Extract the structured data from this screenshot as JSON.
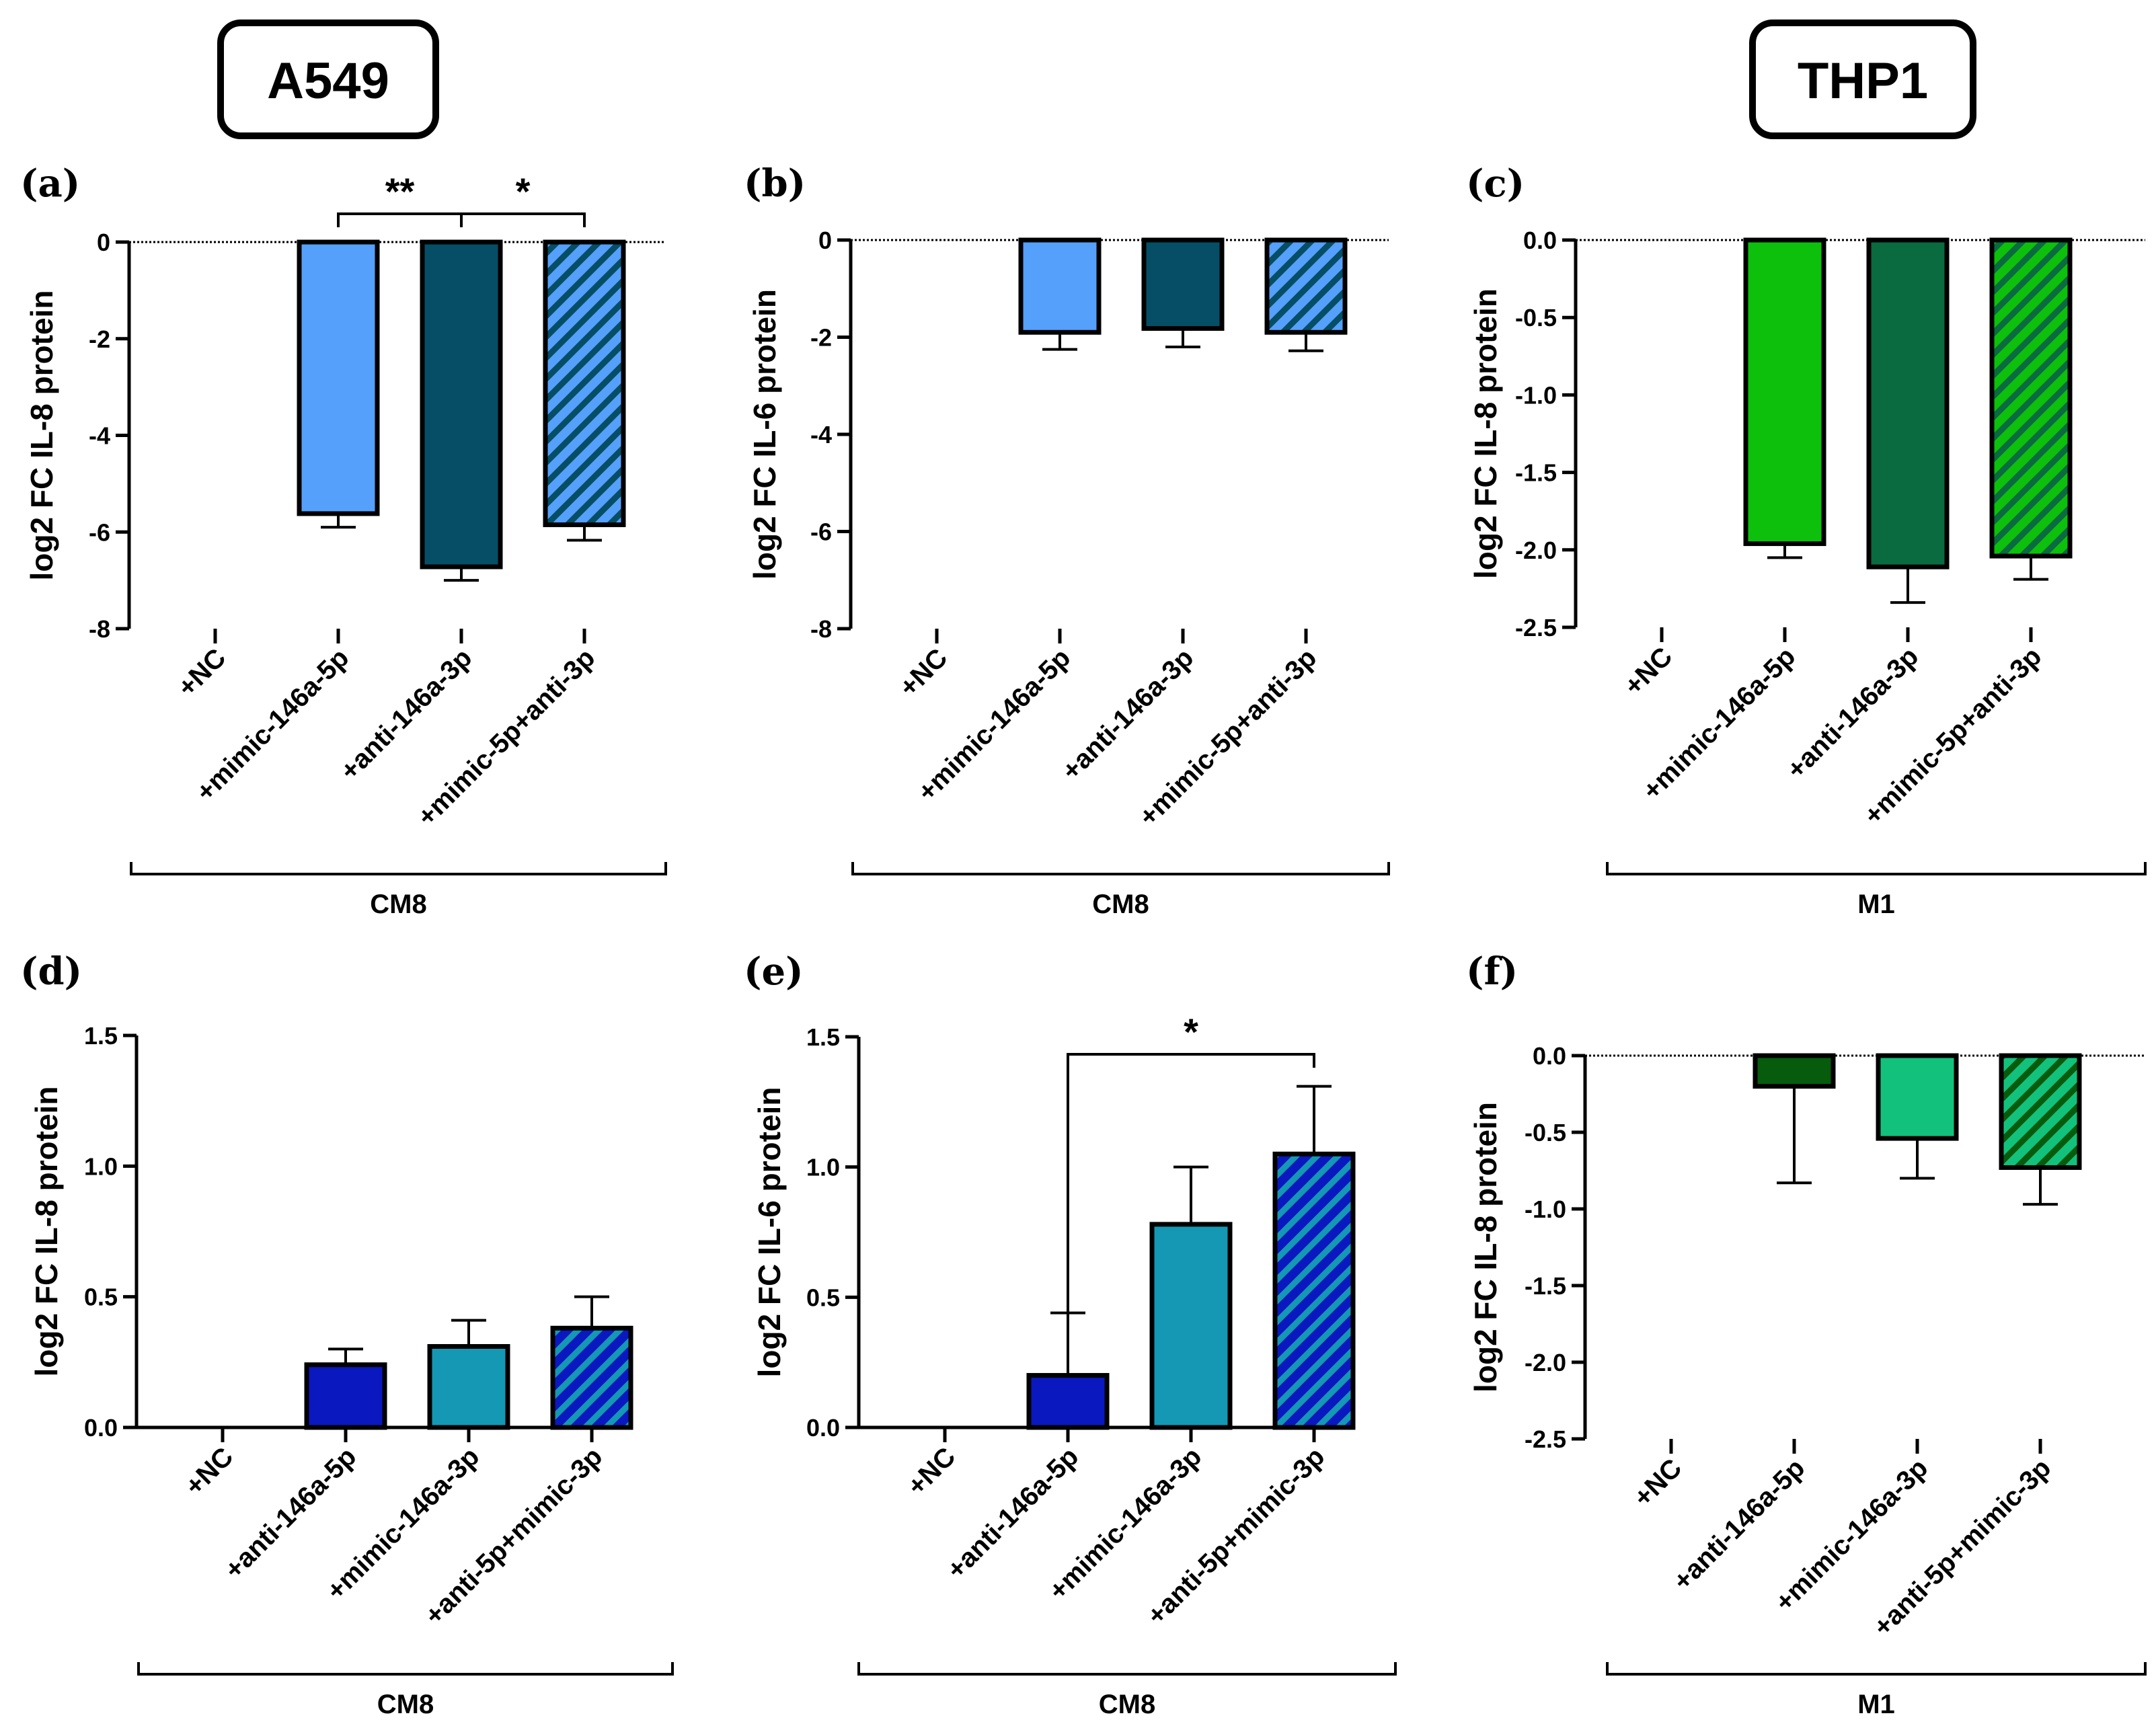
{
  "cell_lines": [
    {
      "label": "A549"
    },
    {
      "label": "THP1"
    }
  ],
  "colors": {
    "light_blue": "#55a0fa",
    "dark_teal": "#054e66",
    "royal_blue": "#0a18bf",
    "teal": "#1498b4",
    "bright_green": "#0cc00c",
    "forest_green": "#0a6a40",
    "dark_green": "#065c0c",
    "mint_green": "#12c27c"
  },
  "chart_data": [
    {
      "panel": "(a)",
      "type": "bar",
      "ylabel": "log2 FC IL-8 protein",
      "ylim": [
        -8,
        0
      ],
      "yticks": [
        "0",
        "-2",
        "-4",
        "-6",
        "-8"
      ],
      "yticks_values": [
        0,
        -2,
        -4,
        -6,
        -8
      ],
      "group_label": "CM8",
      "categories": [
        "+NC",
        "+mimic-146a-5p",
        "+anti-146a-3p",
        "+mimic-5p+anti-3p"
      ],
      "values": [
        0,
        -5.62,
        -6.72,
        -5.85
      ],
      "errors": [
        0,
        0.28,
        0.28,
        0.32
      ],
      "bar_colors": [
        "",
        "#55a0fa",
        "#054e66",
        "#55a0fa"
      ],
      "hatched": [
        false,
        false,
        false,
        true
      ],
      "hatch_color": "#054e66",
      "significance": [
        {
          "from": 1,
          "to": 2,
          "label": "**"
        },
        {
          "from": 2,
          "to": 3,
          "label": "*"
        }
      ]
    },
    {
      "panel": "(b)",
      "type": "bar",
      "ylabel": "log2 FC IL-6 protein",
      "ylim": [
        -8,
        0
      ],
      "yticks": [
        "0",
        "-2",
        "-4",
        "-6",
        "-8"
      ],
      "yticks_values": [
        0,
        -2,
        -4,
        -6,
        -8
      ],
      "group_label": "CM8",
      "categories": [
        "+NC",
        "+mimic-146a-5p",
        "+anti-146a-3p",
        "+mimic-5p+anti-3p"
      ],
      "values": [
        0,
        -1.9,
        -1.82,
        -1.9
      ],
      "errors": [
        0,
        0.35,
        0.38,
        0.38
      ],
      "bar_colors": [
        "",
        "#55a0fa",
        "#054e66",
        "#55a0fa"
      ],
      "hatched": [
        false,
        false,
        false,
        true
      ],
      "hatch_color": "#054e66",
      "significance": []
    },
    {
      "panel": "(c)",
      "type": "bar",
      "ylabel": "log2 FC IL-8 protein",
      "ylim": [
        -2.5,
        0
      ],
      "yticks": [
        "0.0",
        "-0.5",
        "-1.0",
        "-1.5",
        "-2.0",
        "-2.5"
      ],
      "yticks_values": [
        0,
        -0.5,
        -1.0,
        -1.5,
        -2.0,
        -2.5
      ],
      "group_label": "M1",
      "categories": [
        "+NC",
        "+mimic-146a-5p",
        "+anti-146a-3p",
        "+mimic-5p+anti-3p"
      ],
      "values": [
        0,
        -1.96,
        -2.11,
        -2.04
      ],
      "errors": [
        0,
        0.09,
        0.23,
        0.15
      ],
      "bar_colors": [
        "",
        "#0cc00c",
        "#0a6a40",
        "#0cc00c"
      ],
      "hatched": [
        false,
        false,
        false,
        true
      ],
      "hatch_color": "#0a6a40",
      "significance": []
    },
    {
      "panel": "(d)",
      "type": "bar",
      "ylabel": "log2 FC IL-8 protein",
      "ylim": [
        0,
        1.5
      ],
      "yticks": [
        "1.5",
        "1.0",
        "0.5",
        "0.0"
      ],
      "yticks_values": [
        1.5,
        1.0,
        0.5,
        0.0
      ],
      "group_label": "CM8",
      "categories": [
        "+NC",
        "+anti-146a-5p",
        "+mimic-146a-3p",
        "+anti-5p+mimic-3p"
      ],
      "values": [
        0,
        0.24,
        0.31,
        0.38
      ],
      "errors": [
        0,
        0.06,
        0.1,
        0.12
      ],
      "bar_colors": [
        "",
        "#0a18bf",
        "#1498b4",
        "#0a18bf"
      ],
      "hatched": [
        false,
        false,
        false,
        true
      ],
      "hatch_color": "#1498b4",
      "significance": []
    },
    {
      "panel": "(e)",
      "type": "bar",
      "ylabel": "log2 FC IL-6 protein",
      "ylim": [
        0,
        1.5
      ],
      "yticks": [
        "1.5",
        "1.0",
        "0.5",
        "0.0"
      ],
      "yticks_values": [
        1.5,
        1.0,
        0.5,
        0.0
      ],
      "group_label": "CM8",
      "categories": [
        "+NC",
        "+anti-146a-5p",
        "+mimic-146a-3p",
        "+anti-5p+mimic-3p"
      ],
      "values": [
        0,
        0.2,
        0.78,
        1.05
      ],
      "errors": [
        0,
        0.24,
        0.22,
        0.26
      ],
      "bar_colors": [
        "",
        "#0a18bf",
        "#1498b4",
        "#0a18bf"
      ],
      "hatched": [
        false,
        false,
        false,
        true
      ],
      "hatch_color": "#1498b4",
      "significance": [
        {
          "from": 1,
          "to": 3,
          "label": "*"
        }
      ]
    },
    {
      "panel": "(f)",
      "type": "bar",
      "ylabel": "log2 FC IL-8 protein",
      "ylim": [
        -2.5,
        0
      ],
      "yticks": [
        "0.0",
        "-0.5",
        "-1.0",
        "-1.5",
        "-2.0",
        "-2.5"
      ],
      "yticks_values": [
        0,
        -0.5,
        -1.0,
        -1.5,
        -2.0,
        -2.5
      ],
      "group_label": "M1",
      "categories": [
        "+NC",
        "+anti-146a-5p",
        "+mimic-146a-3p",
        "+anti-5p+mimic-3p"
      ],
      "values": [
        0,
        -0.2,
        -0.54,
        -0.73
      ],
      "errors": [
        0,
        0.63,
        0.26,
        0.24
      ],
      "bar_colors": [
        "",
        "#065c0c",
        "#12c27c",
        "#12c27c"
      ],
      "hatched": [
        false,
        false,
        false,
        true
      ],
      "hatch_color": "#065c0c",
      "significance": []
    }
  ]
}
